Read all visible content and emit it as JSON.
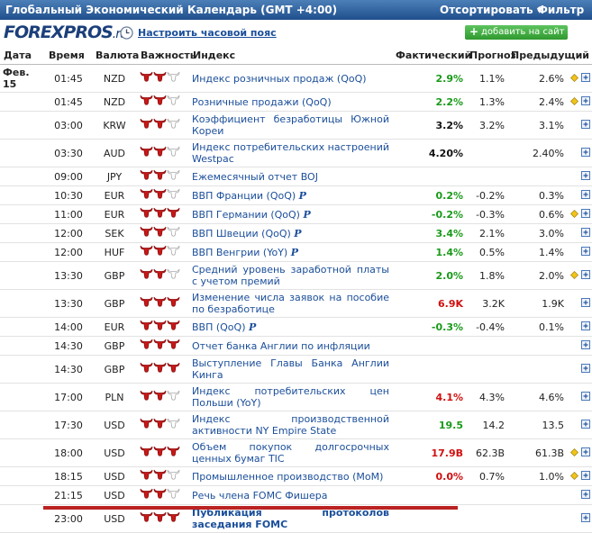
{
  "header": {
    "title": "Глобальный Экономический Календарь (GMT +4:00)",
    "sort": "Отсортировать",
    "filter": "Фильтр",
    "logo": "FOREXPROS",
    "logo_suffix": ".ru",
    "timezone_link": "Настроить часовой пояс",
    "add_button": "добавить на сайт"
  },
  "table": {
    "columns": [
      "Дата",
      "Время",
      "Валюта",
      "Важность",
      "Индекс",
      "Фактический",
      "Прогноз",
      "Предыдущий"
    ],
    "rows": [
      {
        "date": "Фев. 15",
        "time": "01:45",
        "currency": "NZD",
        "importance": 2,
        "event": "Индекс розничных продаж (QoQ)",
        "actual": "2.9%",
        "actual_color": "green",
        "forecast": "1.1%",
        "previous": "2.6%",
        "alert": true
      },
      {
        "time": "01:45",
        "currency": "NZD",
        "importance": 2,
        "event": "Розничные продажи (QoQ)",
        "actual": "2.2%",
        "actual_color": "green",
        "forecast": "1.3%",
        "previous": "2.4%",
        "alert": true
      },
      {
        "time": "03:00",
        "currency": "KRW",
        "importance": 2,
        "event": "Коэффициент безработицы Южной Кореи",
        "actual": "3.2%",
        "actual_color": "black",
        "forecast": "3.2%",
        "previous": "3.1%"
      },
      {
        "time": "03:30",
        "currency": "AUD",
        "importance": 2,
        "event": "Индекс потребительских настроений Westpac",
        "actual": "4.20%",
        "actual_color": "black",
        "forecast": null,
        "previous": "2.40%"
      },
      {
        "time": "09:00",
        "currency": "JPY",
        "importance": 2,
        "event": "Ежемесячный отчет BOJ"
      },
      {
        "time": "10:30",
        "currency": "EUR",
        "importance": 2,
        "event": "ВВП Франции (QoQ)",
        "flag": "P",
        "actual": "0.2%",
        "actual_color": "green",
        "forecast": "-0.2%",
        "previous": "0.3%"
      },
      {
        "time": "11:00",
        "currency": "EUR",
        "importance": 3,
        "event": "ВВП Германии (QoQ)",
        "flag": "P",
        "actual": "-0.2%",
        "actual_color": "green",
        "forecast": "-0.3%",
        "previous": "0.6%",
        "alert": true
      },
      {
        "time": "12:00",
        "currency": "SEK",
        "importance": 2,
        "event": "ВВП Швеции (QoQ)",
        "flag": "P",
        "actual": "3.4%",
        "actual_color": "green",
        "forecast": "2.1%",
        "previous": "3.0%"
      },
      {
        "time": "12:00",
        "currency": "HUF",
        "importance": 2,
        "event": "ВВП Венгрии (YoY)",
        "flag": "P",
        "actual": "1.4%",
        "actual_color": "green",
        "forecast": "0.5%",
        "previous": "1.4%"
      },
      {
        "time": "13:30",
        "currency": "GBP",
        "importance": 2,
        "event": "Средний уровень заработной платы с учетом премий",
        "actual": "2.0%",
        "actual_color": "green",
        "forecast": "1.8%",
        "previous": "2.0%",
        "alert": true
      },
      {
        "time": "13:30",
        "currency": "GBP",
        "importance": 3,
        "event": "Изменение числа заявок на пособие по безработице",
        "actual": "6.9K",
        "actual_color": "red",
        "forecast": "3.2K",
        "previous": "1.9K"
      },
      {
        "time": "14:00",
        "currency": "EUR",
        "importance": 3,
        "event": "ВВП (QoQ)",
        "flag": "P",
        "actual": "-0.3%",
        "actual_color": "green",
        "forecast": "-0.4%",
        "previous": "0.1%"
      },
      {
        "time": "14:30",
        "currency": "GBP",
        "importance": 3,
        "event": "Отчет банка Англии по инфляции"
      },
      {
        "time": "14:30",
        "currency": "GBP",
        "importance": 3,
        "event": "Выступление Главы Банка Англии Кинга"
      },
      {
        "time": "17:00",
        "currency": "PLN",
        "importance": 2,
        "event": "Индекс потребительских цен Польши (YoY)",
        "actual": "4.1%",
        "actual_color": "red",
        "forecast": "4.3%",
        "previous": "4.6%"
      },
      {
        "time": "17:30",
        "currency": "USD",
        "importance": 2,
        "event": "Индекс производственной активности NY Empire State",
        "actual": "19.5",
        "actual_color": "green",
        "forecast": "14.2",
        "previous": "13.5"
      },
      {
        "time": "18:00",
        "currency": "USD",
        "importance": 3,
        "event": "Объем покупок долгосрочных ценных бумаг TIC",
        "actual": "17.9B",
        "actual_color": "red",
        "forecast": "62.3B",
        "previous": "61.3B",
        "alert": true
      },
      {
        "time": "18:15",
        "currency": "USD",
        "importance": 2,
        "event": "Промышленное производство (MoM)",
        "actual": "0.0%",
        "actual_color": "red",
        "forecast": "0.7%",
        "previous": "1.0%",
        "alert": true
      },
      {
        "time": "21:15",
        "currency": "USD",
        "importance": 2,
        "event": "Речь члена FOMC Фишера"
      },
      {
        "time": "23:00",
        "currency": "USD",
        "importance": 3,
        "event": "Публикация протоколов заседания FOMC",
        "highlighted": true
      }
    ]
  }
}
